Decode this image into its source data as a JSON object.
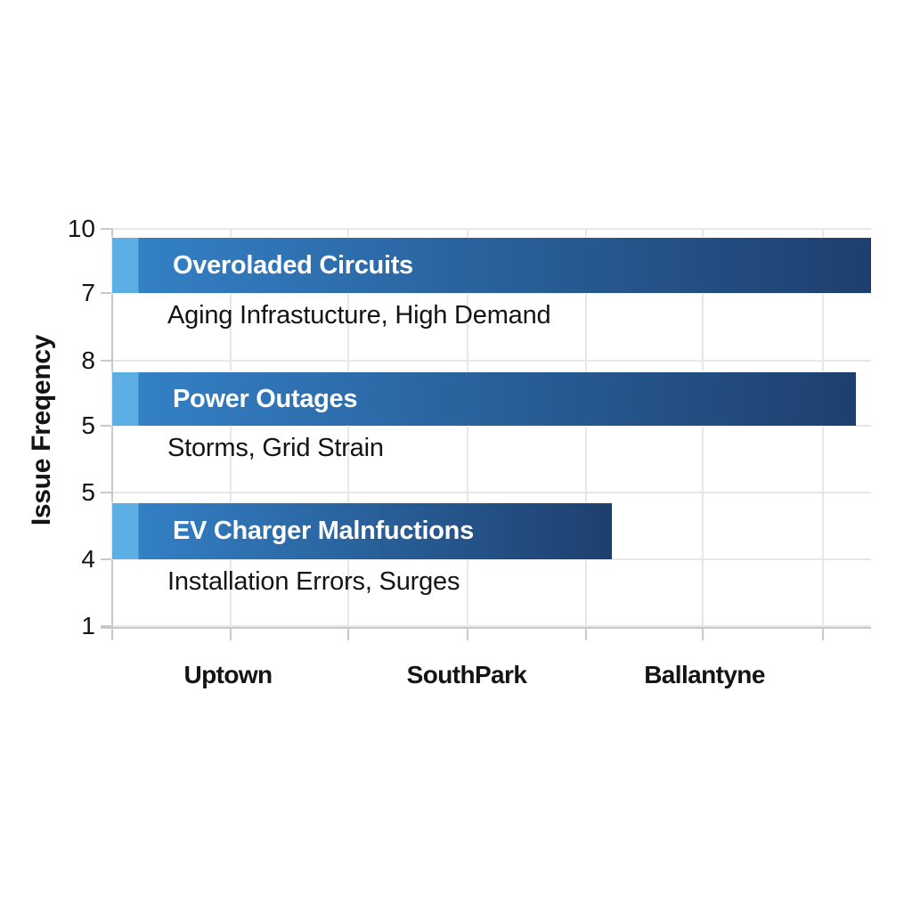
{
  "chart_data": {
    "type": "bar",
    "orientation": "horizontal",
    "title": "",
    "ylabel": "Issue Freqency",
    "xlabel": "",
    "grid": true,
    "legend": false,
    "x_tick_labels": [
      "Uptown",
      "SouthPark",
      "Ballantyne"
    ],
    "y_tick_labels": [
      "10",
      "7",
      "8",
      "5",
      "5",
      "4",
      "1"
    ],
    "bars": [
      {
        "label": "Overoladed Circuits",
        "sublabel": "Aging Infrastucture, High Demand",
        "length_fraction": 1.0
      },
      {
        "label": "Power Outages",
        "sublabel": "Storms, Grid Strain",
        "length_fraction": 0.98
      },
      {
        "label": "EV Charger Malnfuctions",
        "sublabel": "Installation Errors, Surges",
        "length_fraction": 0.658
      }
    ],
    "colors": {
      "bar_light_segment": "#5caee4",
      "bar_gradient_start": "#3380c5",
      "bar_gradient_end": "#1e3f6e",
      "bar_label_text": "#ffffff",
      "grid_line": "#e7e7e7",
      "axis_line": "#c9c9c9",
      "text": "#141414",
      "background": "#ffffff"
    }
  }
}
